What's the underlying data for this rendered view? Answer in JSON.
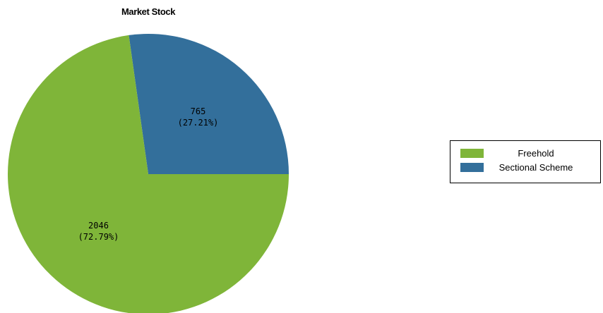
{
  "chart_data": {
    "type": "pie",
    "title": "Market Stock",
    "categories": [
      "Freehold",
      "Sectional Scheme"
    ],
    "values": [
      2046,
      765
    ],
    "percent_labels": [
      "(72.79%)",
      "(27.21%)"
    ],
    "colors": [
      "#7fb539",
      "#336f9b"
    ],
    "legend_position": "right"
  }
}
